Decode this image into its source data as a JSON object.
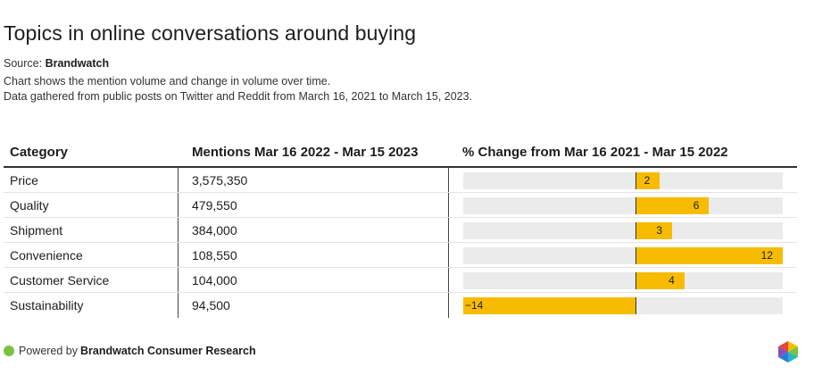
{
  "title": "Topics in online conversations around buying",
  "source_label": "Source:",
  "source_name": "Brandwatch",
  "description_line1": "Chart shows the mention volume and change in volume over time.",
  "description_line2": "Data gathered from public posts on Twitter and Reddit from March 16, 2021 to March 15, 2023.",
  "footer_label": "Powered by",
  "footer_name": "Brandwatch Consumer Research",
  "colors": {
    "bar": "#f7bc00",
    "track": "#ebebeb",
    "footer_dot": "#7ac143"
  },
  "chart_data": {
    "type": "table",
    "columns": [
      "Category",
      "Mentions Mar 16 2022 - Mar 15 2023",
      "% Change from Mar 16 2021 - Mar 15 2022"
    ],
    "rows": [
      {
        "category": "Price",
        "mentions": "3,575,350",
        "change": 2,
        "change_label": "2"
      },
      {
        "category": "Quality",
        "mentions": "479,550",
        "change": 6,
        "change_label": "6"
      },
      {
        "category": "Shipment",
        "mentions": "384,000",
        "change": 3,
        "change_label": "3"
      },
      {
        "category": "Convenience",
        "mentions": "108,550",
        "change": 12,
        "change_label": "12"
      },
      {
        "category": "Customer Service",
        "mentions": "104,000",
        "change": 4,
        "change_label": "4"
      },
      {
        "category": "Sustainability",
        "mentions": "94,500",
        "change": -14,
        "change_label": "−14"
      }
    ],
    "change_range": [
      -14,
      12
    ]
  }
}
